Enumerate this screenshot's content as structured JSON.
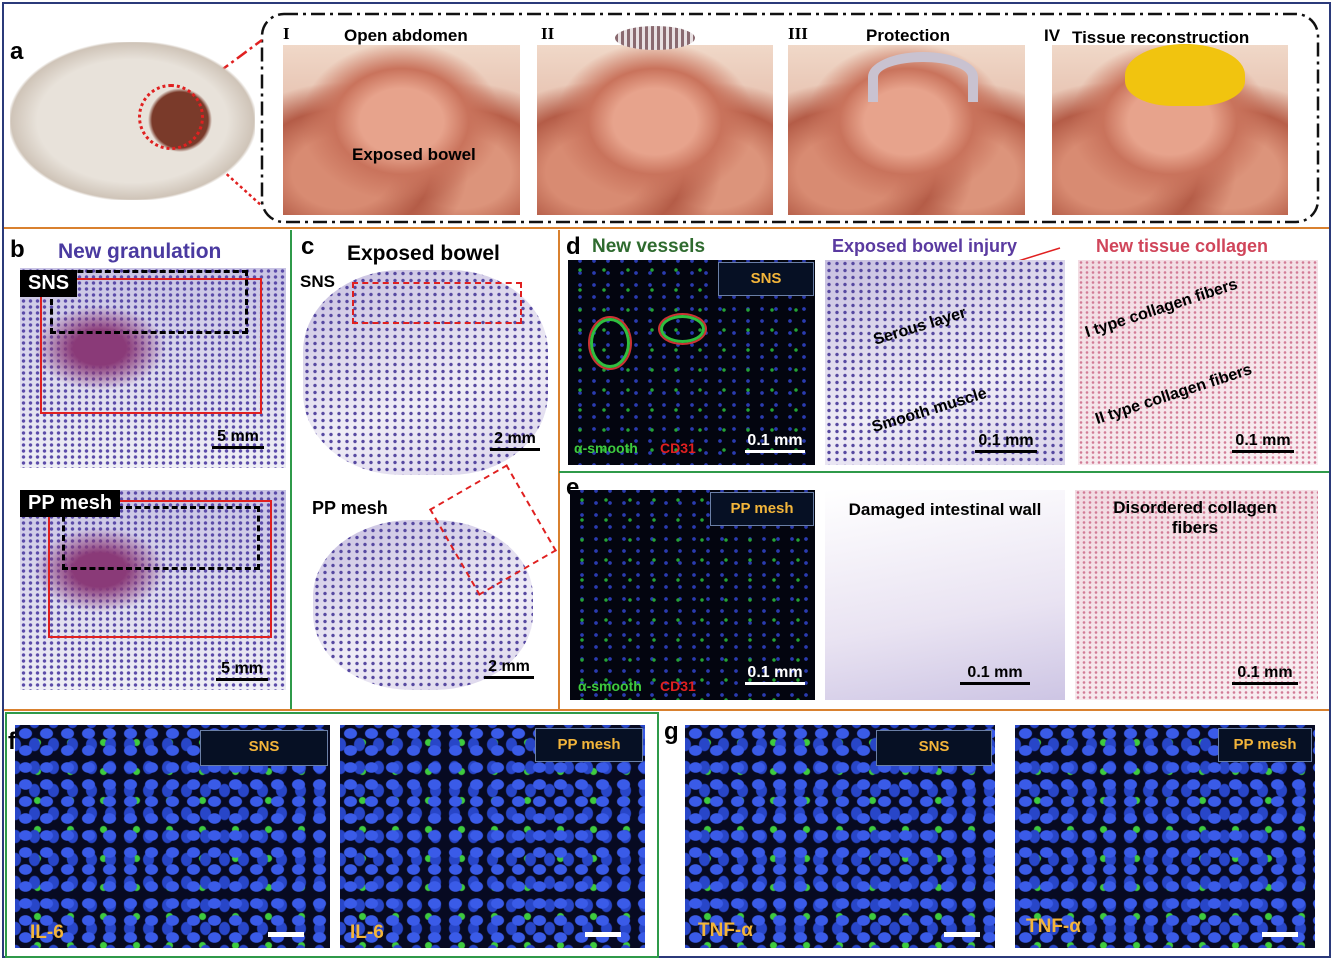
{
  "panels": {
    "a": {
      "label": "a",
      "steps": [
        {
          "numeral": "I",
          "title": "Open abdomen"
        },
        {
          "numeral": "II"
        },
        {
          "numeral": "III",
          "title": "Protection"
        },
        {
          "numeral": "IV",
          "title": "Tissue reconstruction"
        }
      ],
      "annotation": "Exposed bowel"
    },
    "b": {
      "label": "b",
      "title": "New granulation",
      "images": [
        {
          "tag": "SNS",
          "scale": "5 mm"
        },
        {
          "tag": "PP mesh",
          "scale": "5 mm"
        }
      ]
    },
    "c": {
      "label": "c",
      "title": "Exposed bowel",
      "images": [
        {
          "tag": "SNS",
          "scale": "2 mm"
        },
        {
          "tag": "PP mesh",
          "scale": "2 mm"
        }
      ]
    },
    "d": {
      "label": "d",
      "headers": [
        "New vessels",
        "Exposed bowel injury",
        "New tissue collagen"
      ],
      "tag": "SNS",
      "stain": [
        "α-smooth",
        "CD31"
      ],
      "scales": [
        "0.1 mm",
        "0.1 mm",
        "0.1 mm"
      ],
      "annotations": [
        "Serous layer",
        "Smooth muscle",
        "I type collagen fibers",
        "II type collagen fibers"
      ]
    },
    "e": {
      "label": "e",
      "tag": "PP mesh",
      "stain": [
        "α-smooth",
        "CD31"
      ],
      "scales": [
        "0.1 mm",
        "0.1 mm",
        "0.1 mm"
      ],
      "captions": [
        "Damaged intestinal wall",
        "Disordered collagen fibers"
      ]
    },
    "f": {
      "label": "f",
      "images": [
        {
          "tag": "SNS",
          "marker": "IL-6"
        },
        {
          "tag": "PP mesh",
          "marker": "IL-6"
        }
      ]
    },
    "g": {
      "label": "g",
      "images": [
        {
          "tag": "SNS",
          "marker": "TNF-α"
        },
        {
          "tag": "PP mesh",
          "marker": "TNF-α"
        }
      ]
    }
  }
}
